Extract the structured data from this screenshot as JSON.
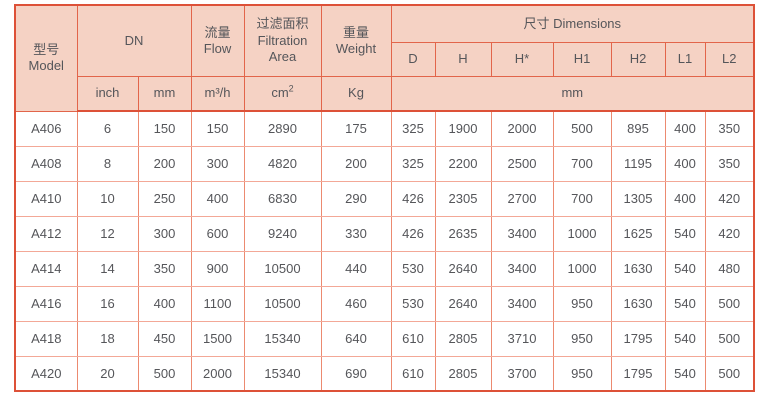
{
  "colors": {
    "header_bg": "#f5d2c4",
    "outer_border": "#dd5138",
    "header_border": "#e2654a",
    "grid_vertical": "#ec8a70",
    "grid_horizontal": "#f3a897",
    "text": "#55565a",
    "page_bg": "#ffffff"
  },
  "header": {
    "model_zh": "型号",
    "model_en": "Model",
    "dn": "DN",
    "flow_zh": "流量",
    "flow_en": "Flow",
    "filtration_zh": "过滤面积",
    "filtration_en_line1": "Filtration",
    "filtration_en_line2": "Area",
    "weight_zh": "重量",
    "weight_en": "Weight",
    "dimensions": "尺寸 Dimensions",
    "units": {
      "inch": "inch",
      "mm": "mm",
      "flow": "m³/h",
      "area_base": "cm",
      "area_sup": "2",
      "weight": "Kg",
      "dimensions_unit": "mm"
    },
    "dim_cols": [
      "D",
      "H",
      "H*",
      "H1",
      "H2",
      "L1",
      "L2"
    ]
  },
  "rows": [
    {
      "model": "A406",
      "inch": "6",
      "mm": "150",
      "flow": "150",
      "area": "2890",
      "weight": "175",
      "dims": [
        "325",
        "1900",
        "2000",
        "500",
        "895",
        "400",
        "350"
      ]
    },
    {
      "model": "A408",
      "inch": "8",
      "mm": "200",
      "flow": "300",
      "area": "4820",
      "weight": "200",
      "dims": [
        "325",
        "2200",
        "2500",
        "700",
        "1195",
        "400",
        "350"
      ]
    },
    {
      "model": "A410",
      "inch": "10",
      "mm": "250",
      "flow": "400",
      "area": "6830",
      "weight": "290",
      "dims": [
        "426",
        "2305",
        "2700",
        "700",
        "1305",
        "400",
        "420"
      ]
    },
    {
      "model": "A412",
      "inch": "12",
      "mm": "300",
      "flow": "600",
      "area": "9240",
      "weight": "330",
      "dims": [
        "426",
        "2635",
        "3400",
        "1000",
        "1625",
        "540",
        "420"
      ]
    },
    {
      "model": "A414",
      "inch": "14",
      "mm": "350",
      "flow": "900",
      "area": "10500",
      "weight": "440",
      "dims": [
        "530",
        "2640",
        "3400",
        "1000",
        "1630",
        "540",
        "480"
      ]
    },
    {
      "model": "A416",
      "inch": "16",
      "mm": "400",
      "flow": "1100",
      "area": "10500",
      "weight": "460",
      "dims": [
        "530",
        "2640",
        "3400",
        "950",
        "1630",
        "540",
        "500"
      ]
    },
    {
      "model": "A418",
      "inch": "18",
      "mm": "450",
      "flow": "1500",
      "area": "15340",
      "weight": "640",
      "dims": [
        "610",
        "2805",
        "3710",
        "950",
        "1795",
        "540",
        "500"
      ]
    },
    {
      "model": "A420",
      "inch": "20",
      "mm": "500",
      "flow": "2000",
      "area": "15340",
      "weight": "690",
      "dims": [
        "610",
        "2805",
        "3700",
        "950",
        "1795",
        "540",
        "500"
      ]
    }
  ]
}
